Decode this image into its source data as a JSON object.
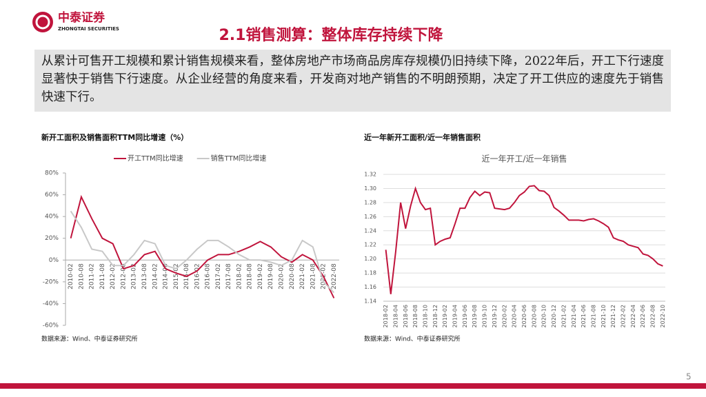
{
  "header": {
    "name": "中泰证券",
    "english": "ZHONGTAI SECURITIES"
  },
  "title": "2.1销售测算：整体库存持续下降",
  "summary": "从累计可售开工规模和累计销售规模来看，整体房地产市场商品房库存规模仍旧持续下降，2022年后，开工下行速度显著快于销售下行速度。从企业经营的角度来看，开发商对地产销售的不明朗预期，决定了开工供应的速度先于销售快速下行。",
  "page": "5",
  "chart_data": [
    {
      "type": "line",
      "title": "新开工面积及销售面积TTM同比增速（%）",
      "source": "数据来源：Wind、中泰证券研究所",
      "categories": [
        "2010-02",
        "2010-08",
        "2011-02",
        "2011-08",
        "2012-02",
        "2012-08",
        "2013-02",
        "2013-08",
        "2014-02",
        "2014-08",
        "2015-02",
        "2015-08",
        "2016-02",
        "2016-08",
        "2017-02",
        "2017-08",
        "2018-02",
        "2018-08",
        "2019-02",
        "2019-08",
        "2020-02",
        "2020-08",
        "2021-02",
        "2021-08",
        "2022-02",
        "2022-08"
      ],
      "series": [
        {
          "name": "开工TTM同比增速",
          "color": "#c0143c",
          "values": [
            20,
            58,
            38,
            20,
            15,
            -8,
            -5,
            5,
            8,
            -8,
            -12,
            -15,
            -10,
            0,
            5,
            5,
            8,
            12,
            17,
            12,
            3,
            -2,
            5,
            0,
            -15,
            -35
          ]
        },
        {
          "name": "销售TTM同比增速",
          "color": "#c8c8c8",
          "values": [
            45,
            30,
            10,
            8,
            -5,
            -5,
            5,
            18,
            15,
            -5,
            -8,
            0,
            10,
            18,
            18,
            12,
            5,
            0,
            0,
            -2,
            -5,
            0,
            18,
            12,
            -20,
            -30
          ]
        }
      ],
      "ylim": [
        -60,
        80
      ],
      "yticks": [
        {
          "value": -60,
          "label": "-60%"
        },
        {
          "value": -40,
          "label": "-40%"
        },
        {
          "value": -20,
          "label": "-20%"
        },
        {
          "value": 0,
          "label": "0%"
        },
        {
          "value": 20,
          "label": "20%"
        },
        {
          "value": 40,
          "label": "40%"
        },
        {
          "value": 60,
          "label": "60%"
        },
        {
          "value": 80,
          "label": "80%"
        }
      ],
      "grid": false,
      "legend": "top"
    },
    {
      "type": "line",
      "title": "近一年新开工面积/近一年销售面积",
      "subtitle": "近一年开工/近一年销售",
      "source": "数据来源：Wind、中泰证券研究所",
      "categories": [
        "2018-02",
        null,
        "2018-04",
        null,
        "2018-06",
        null,
        "2018-08",
        null,
        "2018-10",
        null,
        "2018-12",
        null,
        "2019-02",
        null,
        "2019-04",
        null,
        "2019-06",
        null,
        "2019-08",
        null,
        "2019-10",
        null,
        "2019-12",
        null,
        "2020-02",
        null,
        "2020-04",
        null,
        "2020-06",
        null,
        "2020-08",
        null,
        "2020-10",
        null,
        "2020-12",
        null,
        "2021-02",
        null,
        "2021-04",
        null,
        "2021-06",
        null,
        "2021-08",
        null,
        "2021-10",
        null,
        "2021-12",
        null,
        "2022-02",
        null,
        "2022-04",
        null,
        "2022-06",
        null,
        "2022-08",
        null,
        "2022-10"
      ],
      "series": [
        {
          "color": "#c0143c",
          "values": [
            1.213,
            1.15,
            1.21,
            1.28,
            1.243,
            1.275,
            1.3,
            1.28,
            1.27,
            1.272,
            1.22,
            1.225,
            1.228,
            1.23,
            1.25,
            1.272,
            1.272,
            1.287,
            1.296,
            1.29,
            1.295,
            1.294,
            1.272,
            1.271,
            1.27,
            1.272,
            1.28,
            1.29,
            1.295,
            1.303,
            1.304,
            1.297,
            1.296,
            1.29,
            1.273,
            1.268,
            1.262,
            1.255,
            1.255,
            1.255,
            1.254,
            1.256,
            1.257,
            1.254,
            1.25,
            1.245,
            1.23,
            1.227,
            1.225,
            1.22,
            1.218,
            1.216,
            1.207,
            1.205,
            1.2,
            1.193,
            1.19
          ]
        }
      ],
      "ylim": [
        1.14,
        1.32
      ],
      "yticks": [
        1.14,
        1.16,
        1.18,
        {
          "value": 1.2,
          "label": "1.20"
        },
        1.22,
        1.24,
        1.26,
        1.28,
        {
          "value": 1.3,
          "label": "1.30"
        },
        1.32
      ],
      "grid": true
    }
  ]
}
